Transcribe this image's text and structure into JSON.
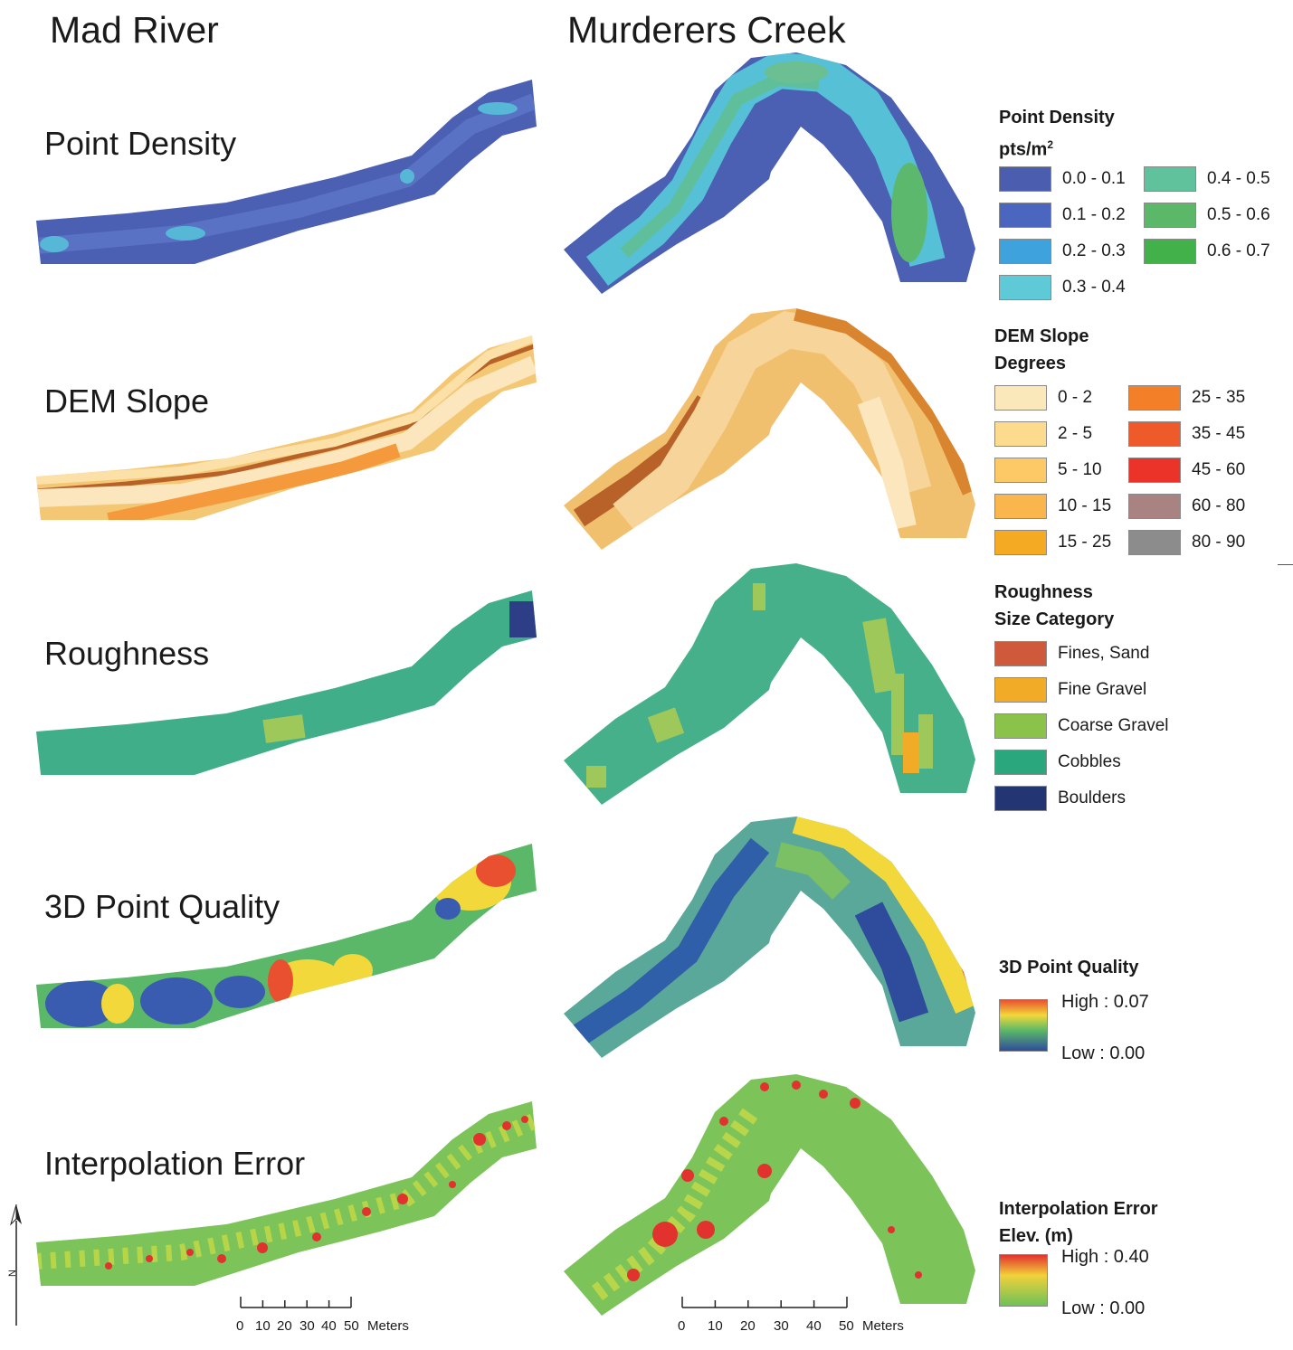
{
  "columns": {
    "left": "Mad River",
    "right": "Murderers Creek"
  },
  "rows": [
    {
      "id": "density",
      "label": "Point Density"
    },
    {
      "id": "slope",
      "label": "DEM Slope"
    },
    {
      "id": "roughness",
      "label": "Roughness"
    },
    {
      "id": "quality",
      "label": "3D Point Quality"
    },
    {
      "id": "interp",
      "label": "Interpolation Error"
    }
  ],
  "legends": {
    "density": {
      "title": "Point Density",
      "subtitle": "pts/m",
      "items": [
        {
          "label": "0.0 - 0.1",
          "color": "#4a5dae"
        },
        {
          "label": "0.1 - 0.2",
          "color": "#4a66be"
        },
        {
          "label": "0.2 - 0.3",
          "color": "#3ea2dc"
        },
        {
          "label": "0.3 - 0.4",
          "color": "#5ecad8"
        },
        {
          "label": "0.4 - 0.5",
          "color": "#5fc29c"
        },
        {
          "label": "0.5 - 0.6",
          "color": "#5cb869"
        },
        {
          "label": "0.6 - 0.7",
          "color": "#43b14a"
        }
      ]
    },
    "slope": {
      "title": "DEM Slope",
      "subtitle": "Degrees",
      "items": [
        {
          "label": "0 - 2",
          "color": "#fbe8ba"
        },
        {
          "label": "2 - 5",
          "color": "#fcdb8e"
        },
        {
          "label": "5 - 10",
          "color": "#fcc966"
        },
        {
          "label": "10 - 15",
          "color": "#f9b64c"
        },
        {
          "label": "15 - 25",
          "color": "#f5aa24"
        },
        {
          "label": "25 - 35",
          "color": "#f37f29"
        },
        {
          "label": "35 - 45",
          "color": "#ef5a2a"
        },
        {
          "label": "45 - 60",
          "color": "#ec332a"
        },
        {
          "label": "60 - 80",
          "color": "#a98282"
        },
        {
          "label": "80 - 90",
          "color": "#8c8c8c"
        }
      ]
    },
    "roughness": {
      "title": "Roughness",
      "subtitle": "Size Category",
      "items": [
        {
          "label": "Fines, Sand",
          "color": "#cf5a3b"
        },
        {
          "label": "Fine Gravel",
          "color": "#f2ab26"
        },
        {
          "label": "Coarse Gravel",
          "color": "#8bc34a"
        },
        {
          "label": "Cobbles",
          "color": "#2aa77c"
        },
        {
          "label": "Boulders",
          "color": "#233572"
        }
      ]
    },
    "quality": {
      "title": "3D Point Quality",
      "high": "High : 0.07",
      "low": "Low : 0.00"
    },
    "interp": {
      "title": "Interpolation Error",
      "subtitle": "Elev. (m)",
      "high": "High : 0.40",
      "low": "Low : 0.00"
    }
  },
  "scale": {
    "left": {
      "ticks": [
        "0",
        "10",
        "20",
        "30",
        "40",
        "50"
      ],
      "unit": "Meters"
    },
    "right": {
      "ticks": [
        "0",
        "10",
        "20",
        "30",
        "40",
        "50"
      ],
      "unit": "Meters"
    }
  },
  "north": "N",
  "colors": {
    "density_base": "#4b5fb3",
    "density_core": "#56c0d6",
    "density_green": "#5cb86c",
    "slope_base": "#f4c774",
    "slope_light": "#fbe6bd",
    "slope_dark": "#b8622a",
    "slope_orange": "#f59a3c",
    "rough_base": "#41ae8a",
    "rough_patch": "#9fc85a",
    "rough_boulder": "#2d3d86",
    "rough_fine": "#f2ab26",
    "quality_blue": "#3a5cb0",
    "quality_green": "#5ab868",
    "quality_yellow": "#f2d83a",
    "quality_red": "#e8502f",
    "interp_green": "#7cc45a",
    "interp_red": "#e2322e",
    "interp_yellow": "#f2d13a"
  }
}
